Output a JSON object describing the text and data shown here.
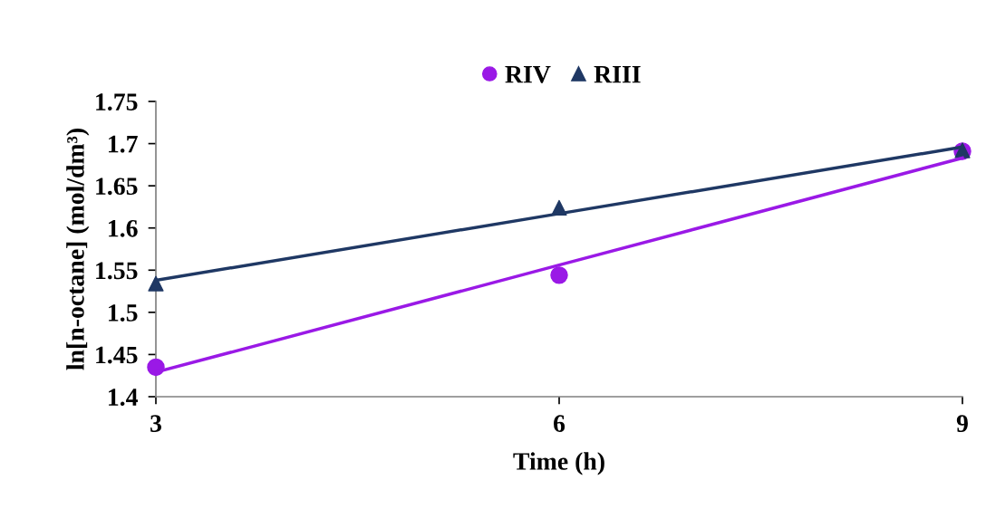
{
  "chart_data": {
    "type": "scatter",
    "xlabel": "Time (h)",
    "ylabel": "ln[n-octane] (mol/dm³)",
    "x": [
      3,
      6,
      9
    ],
    "series": [
      {
        "name": "RIV",
        "color": "#9a19e6",
        "values": [
          1.435,
          1.544,
          1.691
        ],
        "marker": "circle"
      },
      {
        "name": "RIII",
        "color": "#1f3864",
        "values": [
          1.534,
          1.624,
          1.692
        ],
        "marker": "triangle"
      },
      {
        "type": "line",
        "color": "#9a19e6",
        "values": [
          1.429,
          1.556,
          1.683
        ]
      },
      {
        "type": "line",
        "color": "#1f3864",
        "values": [
          1.538,
          1.617,
          1.696
        ]
      }
    ],
    "xlim": [
      3,
      9
    ],
    "xticks": [
      3,
      6,
      9
    ],
    "ylim": [
      1.4,
      1.75
    ],
    "yticks": [
      1.4,
      1.45,
      1.5,
      1.55,
      1.6,
      1.65,
      1.7,
      1.75
    ],
    "grid": false,
    "legend": "top"
  }
}
